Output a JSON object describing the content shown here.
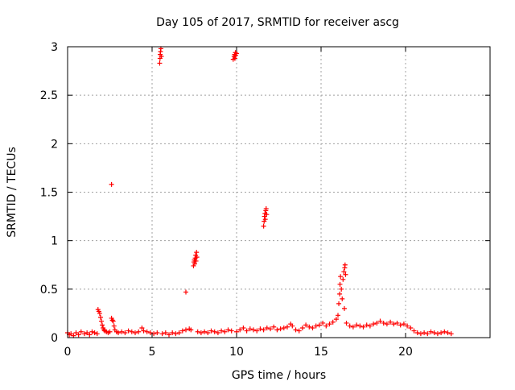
{
  "chart_data": {
    "type": "scatter",
    "title": "Day 105 of 2017, SRMTID for receiver ascg",
    "xlabel": "GPS time / hours",
    "ylabel": "SRMTID / TECUs",
    "xlim": [
      0,
      25
    ],
    "ylim": [
      0,
      3
    ],
    "xticks": [
      0,
      5,
      10,
      15,
      20
    ],
    "xtick_labels": [
      "0",
      "5",
      "10",
      "15",
      "20"
    ],
    "yticks": [
      0,
      0.5,
      1,
      1.5,
      2,
      2.5,
      3
    ],
    "ytick_labels": [
      "0",
      "0.5",
      "1",
      "1.5",
      "2",
      "2.5",
      "3"
    ],
    "grid": true,
    "marker": "+",
    "series_color": "#ff0000",
    "series": [
      {
        "name": "SRMTID",
        "points": [
          [
            0.0,
            0.05
          ],
          [
            0.1,
            0.03
          ],
          [
            0.2,
            0.04
          ],
          [
            0.35,
            0.02
          ],
          [
            0.5,
            0.05
          ],
          [
            0.65,
            0.03
          ],
          [
            0.8,
            0.06
          ],
          [
            1.0,
            0.04
          ],
          [
            1.15,
            0.05
          ],
          [
            1.3,
            0.03
          ],
          [
            1.45,
            0.06
          ],
          [
            1.6,
            0.05
          ],
          [
            1.75,
            0.04
          ],
          [
            1.8,
            0.29
          ],
          [
            1.85,
            0.27
          ],
          [
            1.9,
            0.25
          ],
          [
            1.95,
            0.21
          ],
          [
            2.0,
            0.17
          ],
          [
            2.05,
            0.13
          ],
          [
            2.1,
            0.1
          ],
          [
            2.15,
            0.08
          ],
          [
            2.2,
            0.07
          ],
          [
            2.3,
            0.06
          ],
          [
            2.4,
            0.05
          ],
          [
            2.5,
            0.06
          ],
          [
            2.6,
            0.2
          ],
          [
            2.65,
            0.18
          ],
          [
            2.7,
            0.17
          ],
          [
            2.75,
            0.12
          ],
          [
            2.8,
            0.08
          ],
          [
            2.9,
            0.06
          ],
          [
            2.6,
            1.58
          ],
          [
            3.0,
            0.05
          ],
          [
            3.2,
            0.06
          ],
          [
            3.4,
            0.05
          ],
          [
            3.6,
            0.07
          ],
          [
            3.8,
            0.06
          ],
          [
            4.0,
            0.05
          ],
          [
            4.2,
            0.06
          ],
          [
            4.4,
            0.1
          ],
          [
            4.5,
            0.07
          ],
          [
            4.7,
            0.06
          ],
          [
            4.9,
            0.05
          ],
          [
            5.1,
            0.04
          ],
          [
            5.3,
            0.05
          ],
          [
            5.45,
            2.83
          ],
          [
            5.47,
            2.88
          ],
          [
            5.48,
            2.92
          ],
          [
            5.5,
            2.95
          ],
          [
            5.52,
            2.98
          ],
          [
            5.55,
            2.9
          ],
          [
            5.6,
            0.04
          ],
          [
            5.8,
            0.05
          ],
          [
            6.0,
            0.03
          ],
          [
            6.2,
            0.05
          ],
          [
            6.4,
            0.04
          ],
          [
            6.6,
            0.05
          ],
          [
            6.8,
            0.07
          ],
          [
            7.0,
            0.08
          ],
          [
            7.2,
            0.09
          ],
          [
            7.3,
            0.08
          ],
          [
            7.0,
            0.47
          ],
          [
            7.45,
            0.74
          ],
          [
            7.48,
            0.78
          ],
          [
            7.5,
            0.8
          ],
          [
            7.52,
            0.76
          ],
          [
            7.55,
            0.82
          ],
          [
            7.58,
            0.85
          ],
          [
            7.6,
            0.79
          ],
          [
            7.63,
            0.88
          ],
          [
            7.65,
            0.83
          ],
          [
            7.7,
            0.06
          ],
          [
            7.9,
            0.05
          ],
          [
            8.1,
            0.06
          ],
          [
            8.3,
            0.05
          ],
          [
            8.5,
            0.07
          ],
          [
            8.7,
            0.06
          ],
          [
            8.9,
            0.05
          ],
          [
            9.1,
            0.07
          ],
          [
            9.3,
            0.06
          ],
          [
            9.5,
            0.08
          ],
          [
            9.7,
            0.07
          ],
          [
            9.8,
            2.87
          ],
          [
            9.85,
            2.9
          ],
          [
            9.88,
            2.92
          ],
          [
            9.9,
            2.88
          ],
          [
            9.93,
            2.94
          ],
          [
            9.95,
            2.91
          ],
          [
            10.0,
            2.93
          ],
          [
            10.0,
            0.06
          ],
          [
            10.2,
            0.08
          ],
          [
            10.4,
            0.1
          ],
          [
            10.6,
            0.07
          ],
          [
            10.8,
            0.09
          ],
          [
            11.0,
            0.08
          ],
          [
            11.2,
            0.07
          ],
          [
            11.4,
            0.09
          ],
          [
            11.6,
            0.08
          ],
          [
            11.6,
            1.15
          ],
          [
            11.63,
            1.2
          ],
          [
            11.65,
            1.25
          ],
          [
            11.68,
            1.28
          ],
          [
            11.7,
            1.22
          ],
          [
            11.73,
            1.31
          ],
          [
            11.75,
            1.33
          ],
          [
            11.78,
            1.27
          ],
          [
            11.8,
            0.1
          ],
          [
            12.0,
            0.09
          ],
          [
            12.2,
            0.11
          ],
          [
            12.4,
            0.08
          ],
          [
            12.6,
            0.09
          ],
          [
            12.8,
            0.1
          ],
          [
            13.0,
            0.11
          ],
          [
            13.2,
            0.14
          ],
          [
            13.3,
            0.12
          ],
          [
            13.5,
            0.08
          ],
          [
            13.7,
            0.07
          ],
          [
            13.9,
            0.1
          ],
          [
            14.1,
            0.13
          ],
          [
            14.3,
            0.11
          ],
          [
            14.5,
            0.1
          ],
          [
            14.7,
            0.12
          ],
          [
            14.9,
            0.13
          ],
          [
            15.1,
            0.15
          ],
          [
            15.3,
            0.12
          ],
          [
            15.5,
            0.14
          ],
          [
            15.7,
            0.16
          ],
          [
            15.9,
            0.19
          ],
          [
            16.0,
            0.23
          ],
          [
            16.05,
            0.35
          ],
          [
            16.1,
            0.45
          ],
          [
            16.12,
            0.55
          ],
          [
            16.15,
            0.63
          ],
          [
            16.2,
            0.5
          ],
          [
            16.25,
            0.4
          ],
          [
            16.3,
            0.6
          ],
          [
            16.35,
            0.68
          ],
          [
            16.4,
            0.72
          ],
          [
            16.42,
            0.75
          ],
          [
            16.45,
            0.65
          ],
          [
            16.38,
            0.3
          ],
          [
            16.5,
            0.15
          ],
          [
            16.7,
            0.12
          ],
          [
            16.9,
            0.11
          ],
          [
            17.1,
            0.13
          ],
          [
            17.3,
            0.12
          ],
          [
            17.5,
            0.11
          ],
          [
            17.7,
            0.13
          ],
          [
            17.9,
            0.12
          ],
          [
            18.1,
            0.14
          ],
          [
            18.3,
            0.15
          ],
          [
            18.5,
            0.17
          ],
          [
            18.7,
            0.15
          ],
          [
            18.9,
            0.14
          ],
          [
            19.1,
            0.16
          ],
          [
            19.3,
            0.14
          ],
          [
            19.5,
            0.15
          ],
          [
            19.7,
            0.13
          ],
          [
            19.9,
            0.14
          ],
          [
            20.1,
            0.12
          ],
          [
            20.3,
            0.1
          ],
          [
            20.5,
            0.07
          ],
          [
            20.7,
            0.05
          ],
          [
            20.9,
            0.04
          ],
          [
            21.1,
            0.05
          ],
          [
            21.3,
            0.04
          ],
          [
            21.5,
            0.06
          ],
          [
            21.7,
            0.05
          ],
          [
            21.9,
            0.04
          ],
          [
            22.1,
            0.05
          ],
          [
            22.3,
            0.06
          ],
          [
            22.5,
            0.05
          ],
          [
            22.7,
            0.04
          ]
        ]
      }
    ]
  }
}
